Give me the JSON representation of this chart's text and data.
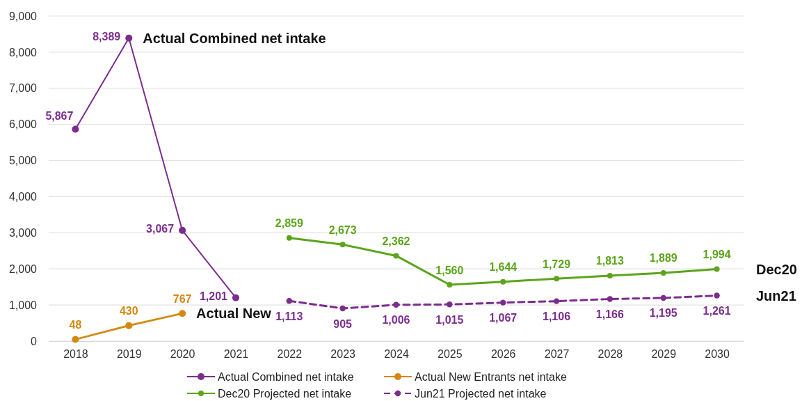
{
  "chart_data": {
    "type": "line",
    "categories": [
      "2018",
      "2019",
      "2020",
      "2021",
      "2022",
      "2023",
      "2024",
      "2025",
      "2026",
      "2027",
      "2028",
      "2029",
      "2030"
    ],
    "series": [
      {
        "name": "Actual Combined net intake",
        "color": "#7b2d8e",
        "values": [
          5867,
          8389,
          3067,
          1201,
          null,
          null,
          null,
          null,
          null,
          null,
          null,
          null,
          null
        ],
        "value_labels": [
          "5,867",
          "8,389",
          "3,067",
          "1,201",
          null,
          null,
          null,
          null,
          null,
          null,
          null,
          null,
          null
        ]
      },
      {
        "name": "Actual New Entrants net intake",
        "color": "#d4880f",
        "values": [
          48,
          430,
          767,
          null,
          null,
          null,
          null,
          null,
          null,
          null,
          null,
          null,
          null
        ],
        "value_labels": [
          "48",
          "430",
          "767",
          null,
          null,
          null,
          null,
          null,
          null,
          null,
          null,
          null,
          null
        ]
      },
      {
        "name": "Dec20 Projected net intake",
        "color": "#5ca51b",
        "values": [
          null,
          null,
          null,
          null,
          2859,
          2673,
          2362,
          1560,
          1644,
          1729,
          1813,
          1889,
          1994
        ],
        "value_labels": [
          null,
          null,
          null,
          null,
          "2,859",
          "2,673",
          "2,362",
          "1,560",
          "1,644",
          "1,729",
          "1,813",
          "1,889",
          "1,994"
        ]
      },
      {
        "name": "Jun21 Projected net intake",
        "color": "#7b2d8e",
        "line_style": "dashed",
        "values": [
          null,
          null,
          null,
          null,
          1113,
          905,
          1006,
          1015,
          1067,
          1106,
          1166,
          1195,
          1261
        ],
        "value_labels": [
          null,
          null,
          null,
          null,
          "1,113",
          "905",
          "1,006",
          "1,015",
          "1,067",
          "1,106",
          "1,166",
          "1,195",
          "1,261"
        ]
      }
    ],
    "ylim": [
      0,
      9000
    ],
    "yticks": [
      0,
      {
        "value": 1000,
        "label": "1,000"
      },
      {
        "value": 2000,
        "label": "2,000"
      },
      {
        "value": 3000,
        "label": "3,000"
      },
      {
        "value": 4000,
        "label": "4,000"
      },
      {
        "value": 5000,
        "label": "5,000"
      },
      {
        "value": 6000,
        "label": "6,000"
      },
      {
        "value": 7000,
        "label": "7,000"
      },
      {
        "value": 8000,
        "label": "8,000"
      },
      {
        "value": 9000,
        "label": "9,000"
      }
    ],
    "grid": "y",
    "legend": "bottom",
    "marker": "circle",
    "line_style": "solid",
    "annotations": [
      {
        "text": "Actual Combined net intake",
        "x": "2019",
        "y": 8389
      },
      {
        "text": "Actual New",
        "x": "2020",
        "y": 767
      },
      {
        "text": "Dec20",
        "x": "2030",
        "y": 1994
      },
      {
        "text": "Jun21",
        "x": "2030",
        "y": 1261
      }
    ]
  }
}
